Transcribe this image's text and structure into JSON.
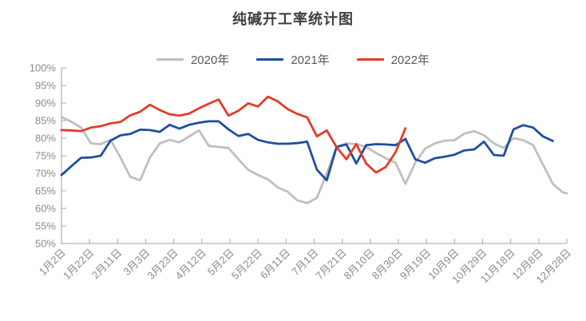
{
  "title": "纯碱开工率统计图",
  "colors": {
    "series_2020": "#bfbfbf",
    "series_2021": "#1f4e9f",
    "series_2022": "#e23c28",
    "axis_line": "#b3b3b3",
    "axis_text": "#8a8a8a",
    "legend_text": "#595959",
    "title_text": "#3f3f3f"
  },
  "chart_data": {
    "type": "line",
    "title": "纯碱开工率统计图",
    "xlabel": "",
    "ylabel": "",
    "x_unit": "day_of_year",
    "ylim": [
      50,
      100
    ],
    "ytick_step": 5,
    "ytick_suffix": "%",
    "grid": false,
    "legend_position": "top",
    "xticks": [
      {
        "day": 2,
        "label": "1月2日"
      },
      {
        "day": 22,
        "label": "1月22日"
      },
      {
        "day": 42,
        "label": "2月11日"
      },
      {
        "day": 62,
        "label": "3月3日"
      },
      {
        "day": 82,
        "label": "3月23日"
      },
      {
        "day": 102,
        "label": "4月12日"
      },
      {
        "day": 122,
        "label": "5月2日"
      },
      {
        "day": 142,
        "label": "5月22日"
      },
      {
        "day": 162,
        "label": "6月11日"
      },
      {
        "day": 182,
        "label": "7月1日"
      },
      {
        "day": 202,
        "label": "7月21日"
      },
      {
        "day": 222,
        "label": "8月10日"
      },
      {
        "day": 242,
        "label": "8月30日"
      },
      {
        "day": 262,
        "label": "9月19日"
      },
      {
        "day": 282,
        "label": "10月9日"
      },
      {
        "day": 302,
        "label": "10月29日"
      },
      {
        "day": 322,
        "label": "11月18日"
      },
      {
        "day": 342,
        "label": "12月8日"
      },
      {
        "day": 362,
        "label": "12月28日"
      }
    ],
    "series": [
      {
        "name": "2020年",
        "color": "#bfbfbf",
        "days": [
          2,
          9,
          16,
          23,
          30,
          37,
          44,
          51,
          58,
          65,
          72,
          79,
          86,
          93,
          100,
          107,
          114,
          121,
          128,
          135,
          142,
          149,
          156,
          163,
          170,
          177,
          184,
          191,
          198,
          205,
          212,
          219,
          226,
          233,
          240,
          247,
          254,
          261,
          268,
          275,
          282,
          289,
          296,
          303,
          310,
          317,
          324,
          331,
          338,
          345,
          352,
          359,
          362
        ],
        "values": [
          86.0,
          84.7,
          83.0,
          78.5,
          78.3,
          79.5,
          74.5,
          69.0,
          68.0,
          74.5,
          78.5,
          79.5,
          78.8,
          80.5,
          82.2,
          77.8,
          77.5,
          77.2,
          74.0,
          71.0,
          69.5,
          68.3,
          66.0,
          64.8,
          62.3,
          61.5,
          63.0,
          70.0,
          77.5,
          78.5,
          78.3,
          77.5,
          75.8,
          74.3,
          73.0,
          67.0,
          73.0,
          77.0,
          78.5,
          79.3,
          79.4,
          81.3,
          82.0,
          80.8,
          78.5,
          77.2,
          80.0,
          79.4,
          78.0,
          72.5,
          67.0,
          64.6,
          64.3
        ]
      },
      {
        "name": "2021年",
        "color": "#1f4e9f",
        "days": [
          2,
          9,
          16,
          23,
          30,
          37,
          44,
          51,
          58,
          65,
          72,
          79,
          86,
          93,
          100,
          107,
          114,
          121,
          128,
          135,
          142,
          149,
          156,
          163,
          170,
          177,
          184,
          191,
          198,
          205,
          212,
          219,
          226,
          233,
          240,
          247,
          254,
          261,
          268,
          275,
          282,
          289,
          296,
          303,
          310,
          317,
          324,
          331,
          338,
          345,
          352
        ],
        "values": [
          69.5,
          72.0,
          74.4,
          74.5,
          75.0,
          79.3,
          80.8,
          81.2,
          82.4,
          82.3,
          81.8,
          83.8,
          82.7,
          83.8,
          84.4,
          84.8,
          84.8,
          82.5,
          80.6,
          81.2,
          79.5,
          78.8,
          78.4,
          78.4,
          78.6,
          79.0,
          71.0,
          68.0,
          77.5,
          78.2,
          72.8,
          78.0,
          78.3,
          78.2,
          78.0,
          79.8,
          74.0,
          73.0,
          74.3,
          74.7,
          75.3,
          76.5,
          76.8,
          79.0,
          75.2,
          75.0,
          82.5,
          83.7,
          83.0,
          80.5,
          79.2
        ]
      },
      {
        "name": "2022年",
        "color": "#e23c28",
        "days": [
          2,
          9,
          16,
          23,
          30,
          37,
          44,
          51,
          58,
          65,
          72,
          79,
          86,
          93,
          100,
          107,
          114,
          121,
          128,
          135,
          142,
          149,
          156,
          163,
          170,
          177,
          184,
          191,
          198,
          205,
          212,
          219,
          226,
          233,
          240,
          247
        ],
        "values": [
          82.3,
          82.2,
          82.0,
          83.0,
          83.4,
          84.2,
          84.6,
          86.5,
          87.5,
          89.5,
          88.0,
          86.8,
          86.4,
          87.0,
          88.5,
          89.8,
          91.0,
          86.4,
          87.8,
          89.9,
          89.0,
          91.8,
          90.5,
          88.3,
          86.9,
          85.9,
          80.5,
          82.2,
          77.4,
          74.0,
          78.3,
          72.8,
          70.2,
          71.8,
          76.0,
          82.8
        ]
      }
    ]
  }
}
